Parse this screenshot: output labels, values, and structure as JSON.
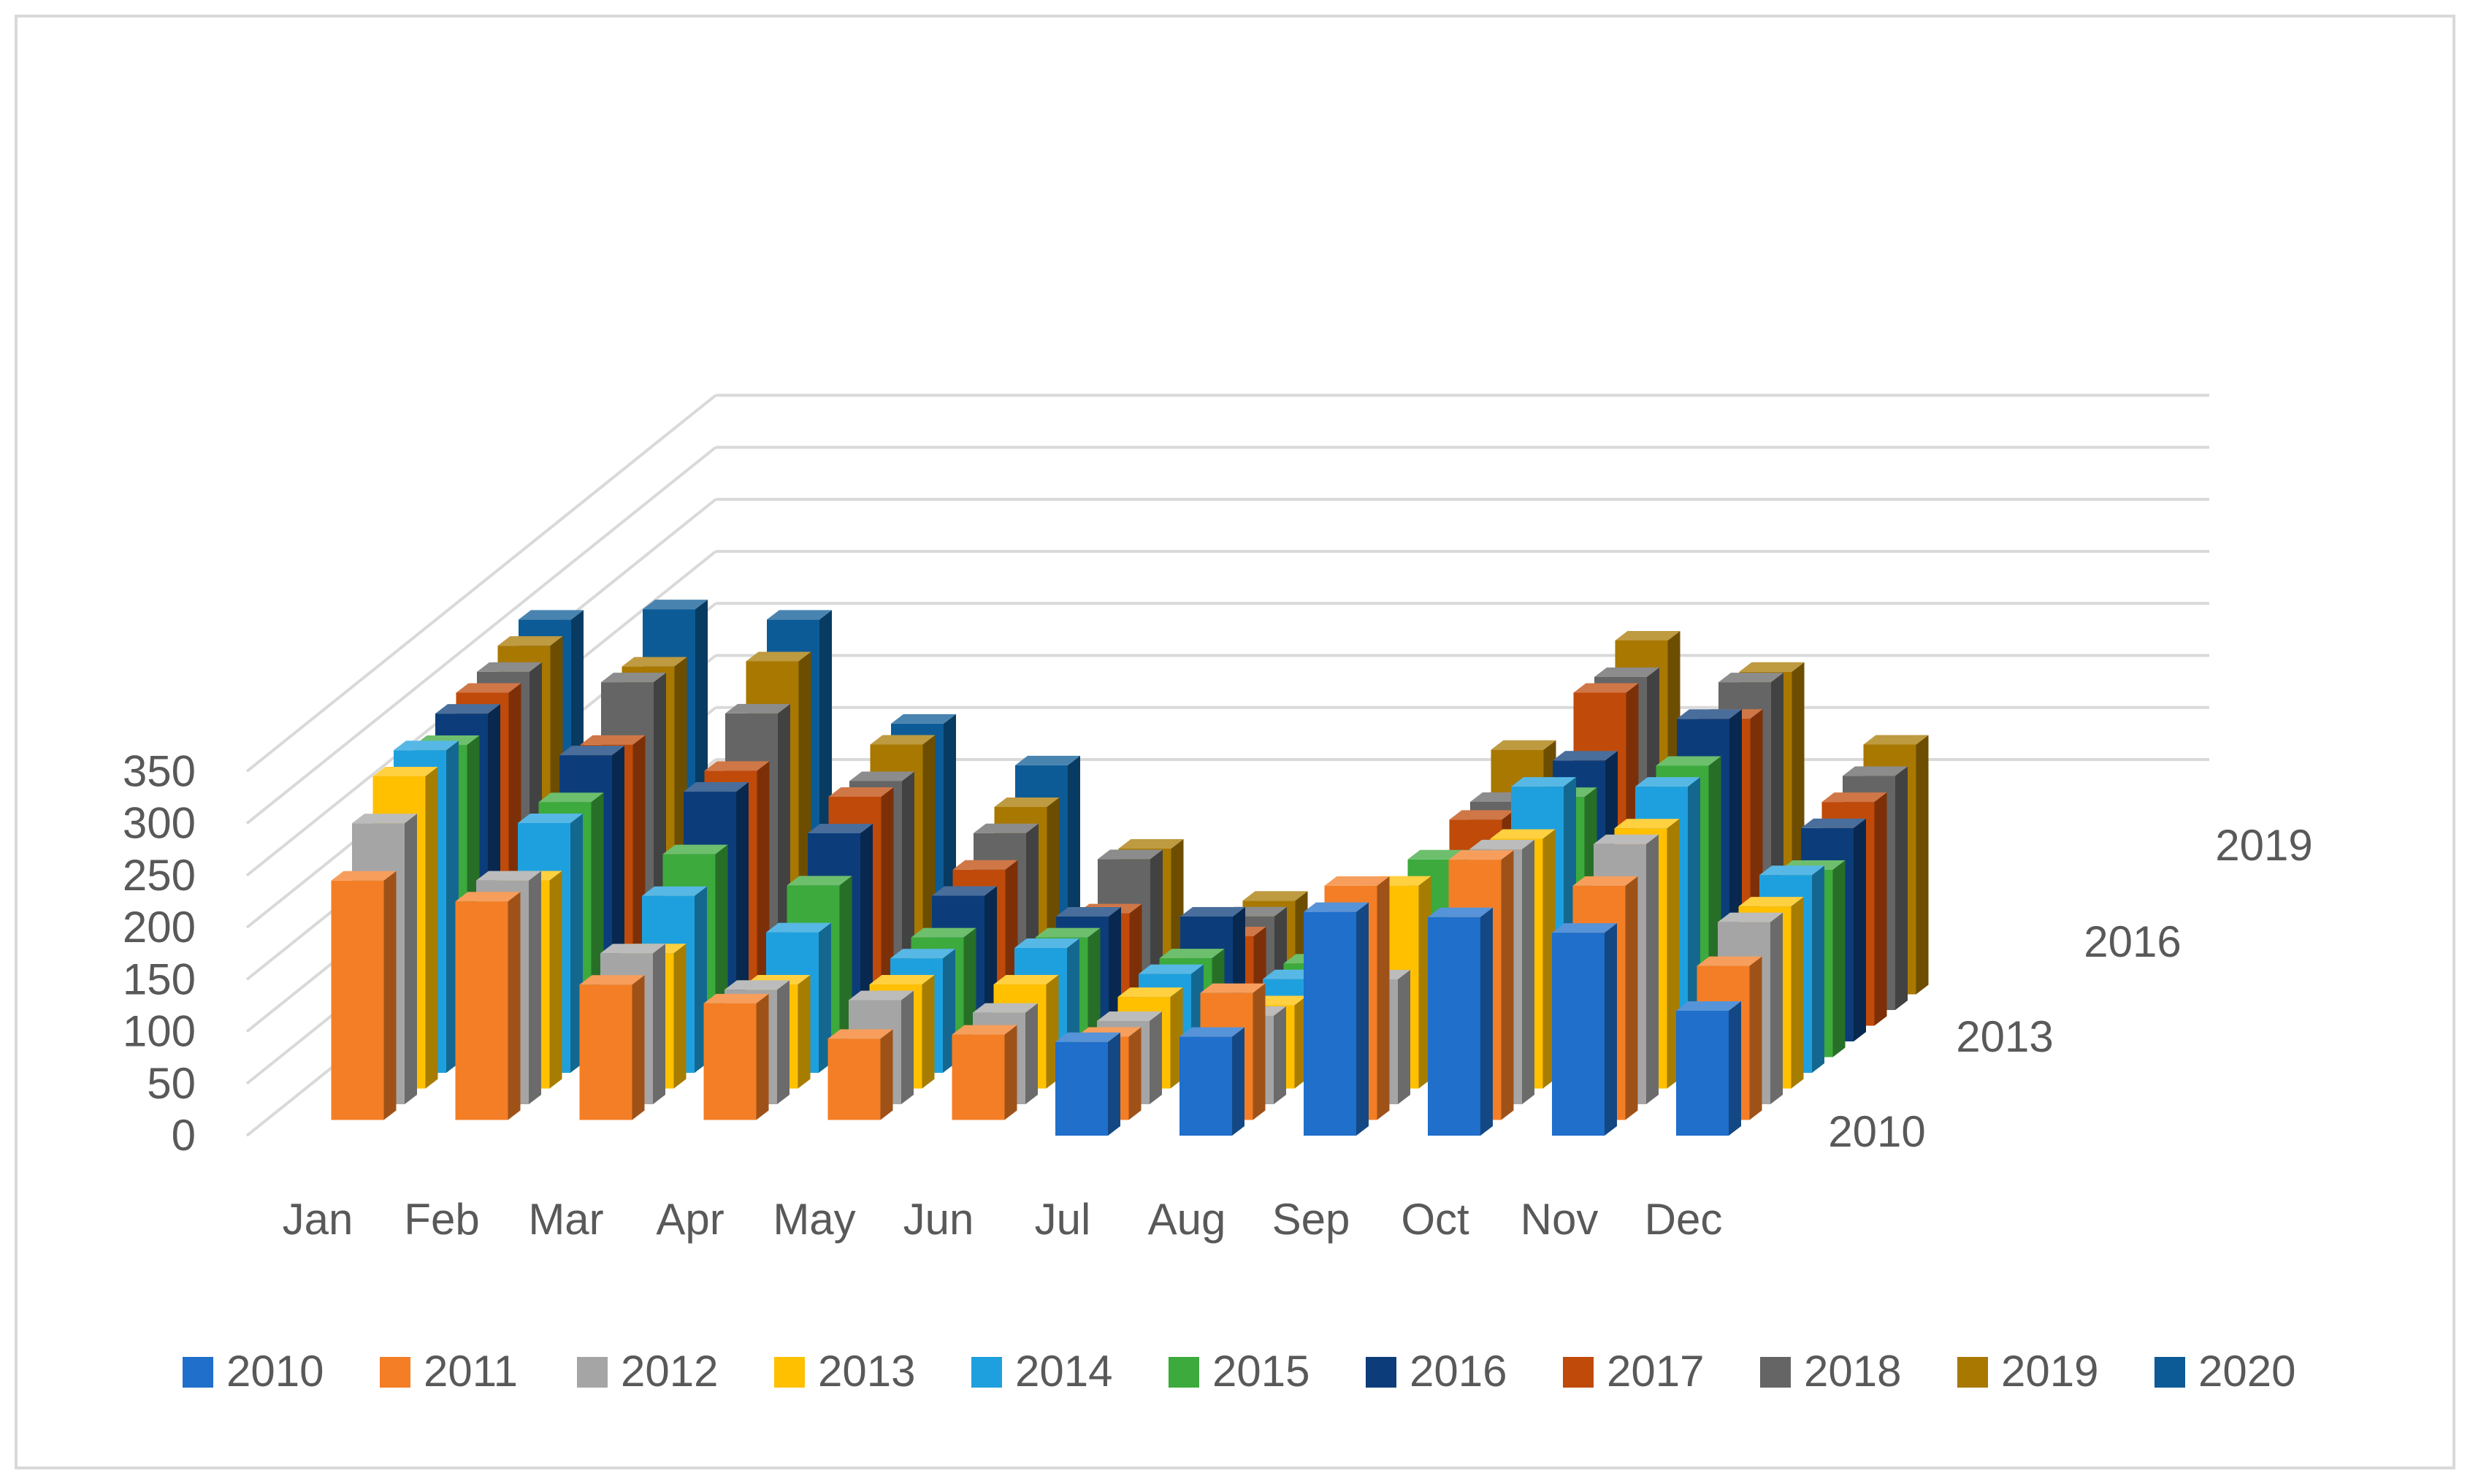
{
  "chart_data": {
    "type": "bar",
    "subtype": "3d-column",
    "title": "",
    "xlabel": "",
    "ylabel": "",
    "ylim": [
      0,
      350
    ],
    "yticks": [
      0,
      50,
      100,
      150,
      200,
      250,
      300,
      350
    ],
    "depth_labels": [
      "2010",
      "2013",
      "2016",
      "2019"
    ],
    "categories": [
      "Jan",
      "Feb",
      "Mar",
      "Apr",
      "May",
      "Jun",
      "Jul",
      "Aug",
      "Sep",
      "Oct",
      "Nov",
      "Dec"
    ],
    "series": [
      {
        "name": "2010",
        "color": "#1F6FCB",
        "values": [
          0,
          0,
          0,
          0,
          0,
          0,
          90,
          95,
          215,
          210,
          195,
          120
        ]
      },
      {
        "name": "2011",
        "color": "#F47E25",
        "values": [
          230,
          210,
          130,
          112,
          78,
          82,
          80,
          122,
          225,
          250,
          225,
          148
        ]
      },
      {
        "name": "2012",
        "color": "#A5A5A5",
        "values": [
          270,
          215,
          145,
          110,
          100,
          88,
          80,
          85,
          120,
          245,
          250,
          175
        ]
      },
      {
        "name": "2013",
        "color": "#FFC000",
        "values": [
          300,
          200,
          130,
          100,
          100,
          100,
          88,
          80,
          195,
          240,
          250,
          175
        ]
      },
      {
        "name": "2014",
        "color": "#1FA0DE",
        "values": [
          310,
          240,
          170,
          135,
          110,
          120,
          95,
          90,
          130,
          275,
          275,
          190
        ]
      },
      {
        "name": "2015",
        "color": "#3CAA3C",
        "values": [
          300,
          245,
          195,
          165,
          115,
          115,
          95,
          90,
          190,
          250,
          280,
          180
        ]
      },
      {
        "name": "2016",
        "color": "#0C3D7A",
        "values": [
          315,
          275,
          240,
          200,
          140,
          120,
          120,
          88,
          165,
          270,
          310,
          205
        ]
      },
      {
        "name": "2017",
        "color": "#C04A0A",
        "values": [
          320,
          270,
          245,
          220,
          150,
          108,
          86,
          80,
          198,
          320,
          295,
          215
        ]
      },
      {
        "name": "2018",
        "color": "#656565",
        "values": [
          325,
          315,
          285,
          220,
          170,
          145,
          90,
          90,
          200,
          320,
          315,
          225
        ]
      },
      {
        "name": "2019",
        "color": "#A87800",
        "values": [
          335,
          315,
          320,
          240,
          180,
          140,
          90,
          90,
          235,
          340,
          310,
          240
        ]
      },
      {
        "name": "2020",
        "color": "#0C5B96",
        "values": [
          345,
          355,
          345,
          245,
          205,
          0,
          0,
          0,
          0,
          0,
          0,
          0
        ]
      }
    ],
    "legend_position": "bottom",
    "grid": true
  }
}
